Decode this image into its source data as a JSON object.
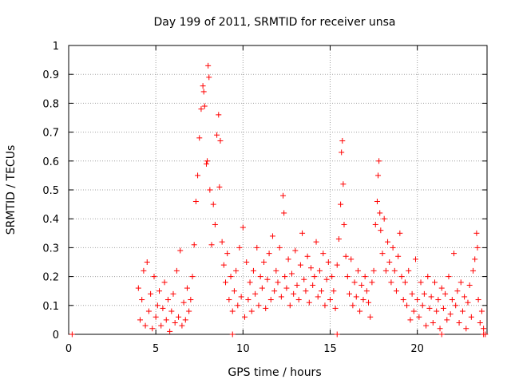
{
  "chart_data": {
    "type": "scatter",
    "title": "Day 199 of 2011, SRMTID for receiver unsa",
    "xlabel": "GPS time / hours",
    "ylabel": "SRMTID / TECUs",
    "xlim": [
      0,
      24
    ],
    "ylim": [
      0,
      1
    ],
    "x_ticks": [
      "0",
      "5",
      "10",
      "15",
      "20"
    ],
    "x_tick_values": [
      0,
      5,
      10,
      15,
      20
    ],
    "y_ticks": [
      "0",
      "0.1",
      "0.2",
      "0.3",
      "0.4",
      "0.5",
      "0.6",
      "0.7",
      "0.8",
      "0.9",
      "1"
    ],
    "y_tick_values": [
      0,
      0.1,
      0.2,
      0.3,
      0.4,
      0.5,
      0.6,
      0.7,
      0.8,
      0.9,
      1
    ],
    "grid": true,
    "marker": "+",
    "color": "#ff0000",
    "series": [
      {
        "points": [
          [
            0.2,
            0.0
          ],
          [
            9.4,
            0.0
          ],
          [
            15.4,
            0.0
          ],
          [
            21.4,
            0.0
          ],
          [
            23.8,
            0.0
          ],
          [
            4.0,
            0.16
          ],
          [
            4.1,
            0.05
          ],
          [
            4.2,
            0.12
          ],
          [
            4.3,
            0.22
          ],
          [
            4.4,
            0.03
          ],
          [
            4.5,
            0.25
          ],
          [
            4.6,
            0.08
          ],
          [
            4.7,
            0.14
          ],
          [
            4.8,
            0.02
          ],
          [
            4.9,
            0.2
          ],
          [
            5.0,
            0.06
          ],
          [
            5.1,
            0.1
          ],
          [
            5.2,
            0.15
          ],
          [
            5.3,
            0.03
          ],
          [
            5.4,
            0.09
          ],
          [
            5.5,
            0.18
          ],
          [
            5.6,
            0.05
          ],
          [
            5.7,
            0.12
          ],
          [
            5.8,
            0.01
          ],
          [
            5.9,
            0.08
          ],
          [
            6.0,
            0.14
          ],
          [
            6.1,
            0.04
          ],
          [
            6.2,
            0.22
          ],
          [
            6.3,
            0.06
          ],
          [
            6.4,
            0.29
          ],
          [
            6.5,
            0.03
          ],
          [
            6.6,
            0.11
          ],
          [
            6.7,
            0.05
          ],
          [
            6.8,
            0.16
          ],
          [
            6.9,
            0.08
          ],
          [
            7.0,
            0.12
          ],
          [
            7.1,
            0.2
          ],
          [
            7.2,
            0.31
          ],
          [
            7.3,
            0.46
          ],
          [
            7.4,
            0.55
          ],
          [
            7.5,
            0.68
          ],
          [
            7.6,
            0.78
          ],
          [
            7.7,
            0.86
          ],
          [
            7.75,
            0.84
          ],
          [
            7.8,
            0.79
          ],
          [
            7.9,
            0.59
          ],
          [
            7.95,
            0.6
          ],
          [
            8.0,
            0.93
          ],
          [
            8.05,
            0.89
          ],
          [
            8.1,
            0.5
          ],
          [
            8.2,
            0.31
          ],
          [
            8.3,
            0.45
          ],
          [
            8.4,
            0.38
          ],
          [
            8.5,
            0.69
          ],
          [
            8.6,
            0.76
          ],
          [
            8.65,
            0.51
          ],
          [
            8.7,
            0.67
          ],
          [
            8.8,
            0.32
          ],
          [
            8.9,
            0.24
          ],
          [
            9.0,
            0.18
          ],
          [
            9.1,
            0.28
          ],
          [
            9.2,
            0.12
          ],
          [
            9.3,
            0.2
          ],
          [
            9.4,
            0.08
          ],
          [
            9.5,
            0.15
          ],
          [
            9.6,
            0.22
          ],
          [
            9.7,
            0.1
          ],
          [
            9.8,
            0.3
          ],
          [
            9.9,
            0.13
          ],
          [
            10.0,
            0.37
          ],
          [
            10.1,
            0.06
          ],
          [
            10.2,
            0.25
          ],
          [
            10.3,
            0.12
          ],
          [
            10.4,
            0.18
          ],
          [
            10.5,
            0.08
          ],
          [
            10.6,
            0.22
          ],
          [
            10.7,
            0.14
          ],
          [
            10.8,
            0.3
          ],
          [
            10.9,
            0.1
          ],
          [
            11.0,
            0.2
          ],
          [
            11.1,
            0.16
          ],
          [
            11.2,
            0.25
          ],
          [
            11.3,
            0.09
          ],
          [
            11.4,
            0.19
          ],
          [
            11.5,
            0.28
          ],
          [
            11.6,
            0.12
          ],
          [
            11.7,
            0.34
          ],
          [
            11.8,
            0.15
          ],
          [
            11.9,
            0.22
          ],
          [
            12.0,
            0.18
          ],
          [
            12.1,
            0.3
          ],
          [
            12.2,
            0.13
          ],
          [
            12.3,
            0.48
          ],
          [
            12.35,
            0.42
          ],
          [
            12.4,
            0.2
          ],
          [
            12.5,
            0.16
          ],
          [
            12.6,
            0.26
          ],
          [
            12.7,
            0.1
          ],
          [
            12.8,
            0.21
          ],
          [
            12.9,
            0.14
          ],
          [
            13.0,
            0.29
          ],
          [
            13.1,
            0.17
          ],
          [
            13.2,
            0.12
          ],
          [
            13.3,
            0.24
          ],
          [
            13.4,
            0.35
          ],
          [
            13.5,
            0.19
          ],
          [
            13.6,
            0.15
          ],
          [
            13.7,
            0.27
          ],
          [
            13.8,
            0.11
          ],
          [
            13.9,
            0.23
          ],
          [
            14.0,
            0.17
          ],
          [
            14.1,
            0.2
          ],
          [
            14.2,
            0.32
          ],
          [
            14.3,
            0.13
          ],
          [
            14.4,
            0.22
          ],
          [
            14.5,
            0.15
          ],
          [
            14.6,
            0.28
          ],
          [
            14.7,
            0.1
          ],
          [
            14.8,
            0.19
          ],
          [
            14.9,
            0.25
          ],
          [
            15.0,
            0.12
          ],
          [
            15.1,
            0.2
          ],
          [
            15.2,
            0.15
          ],
          [
            15.3,
            0.09
          ],
          [
            15.4,
            0.24
          ],
          [
            15.5,
            0.33
          ],
          [
            15.6,
            0.45
          ],
          [
            15.65,
            0.63
          ],
          [
            15.7,
            0.67
          ],
          [
            15.75,
            0.52
          ],
          [
            15.8,
            0.38
          ],
          [
            15.9,
            0.27
          ],
          [
            16.0,
            0.2
          ],
          [
            16.1,
            0.14
          ],
          [
            16.2,
            0.26
          ],
          [
            16.3,
            0.1
          ],
          [
            16.4,
            0.18
          ],
          [
            16.5,
            0.13
          ],
          [
            16.6,
            0.22
          ],
          [
            16.7,
            0.08
          ],
          [
            16.8,
            0.17
          ],
          [
            16.9,
            0.12
          ],
          [
            17.0,
            0.2
          ],
          [
            17.1,
            0.15
          ],
          [
            17.2,
            0.11
          ],
          [
            17.3,
            0.06
          ],
          [
            17.4,
            0.18
          ],
          [
            17.5,
            0.22
          ],
          [
            17.6,
            0.38
          ],
          [
            17.7,
            0.46
          ],
          [
            17.75,
            0.55
          ],
          [
            17.8,
            0.6
          ],
          [
            17.85,
            0.42
          ],
          [
            17.9,
            0.36
          ],
          [
            18.0,
            0.28
          ],
          [
            18.1,
            0.4
          ],
          [
            18.2,
            0.22
          ],
          [
            18.3,
            0.32
          ],
          [
            18.4,
            0.25
          ],
          [
            18.5,
            0.18
          ],
          [
            18.6,
            0.3
          ],
          [
            18.7,
            0.22
          ],
          [
            18.8,
            0.15
          ],
          [
            18.9,
            0.27
          ],
          [
            19.0,
            0.35
          ],
          [
            19.1,
            0.2
          ],
          [
            19.2,
            0.12
          ],
          [
            19.3,
            0.18
          ],
          [
            19.4,
            0.1
          ],
          [
            19.5,
            0.22
          ],
          [
            19.6,
            0.05
          ],
          [
            19.7,
            0.14
          ],
          [
            19.8,
            0.08
          ],
          [
            19.9,
            0.26
          ],
          [
            20.0,
            0.12
          ],
          [
            20.1,
            0.06
          ],
          [
            20.2,
            0.18
          ],
          [
            20.3,
            0.1
          ],
          [
            20.4,
            0.14
          ],
          [
            20.5,
            0.03
          ],
          [
            20.6,
            0.2
          ],
          [
            20.7,
            0.09
          ],
          [
            20.8,
            0.13
          ],
          [
            20.9,
            0.04
          ],
          [
            21.0,
            0.18
          ],
          [
            21.1,
            0.08
          ],
          [
            21.2,
            0.12
          ],
          [
            21.3,
            0.02
          ],
          [
            21.4,
            0.16
          ],
          [
            21.5,
            0.09
          ],
          [
            21.6,
            0.14
          ],
          [
            21.7,
            0.05
          ],
          [
            21.8,
            0.2
          ],
          [
            21.9,
            0.07
          ],
          [
            22.0,
            0.12
          ],
          [
            22.1,
            0.28
          ],
          [
            22.2,
            0.1
          ],
          [
            22.3,
            0.15
          ],
          [
            22.4,
            0.04
          ],
          [
            22.5,
            0.18
          ],
          [
            22.6,
            0.08
          ],
          [
            22.7,
            0.13
          ],
          [
            22.8,
            0.02
          ],
          [
            22.9,
            0.11
          ],
          [
            23.0,
            0.17
          ],
          [
            23.1,
            0.06
          ],
          [
            23.2,
            0.22
          ],
          [
            23.3,
            0.26
          ],
          [
            23.4,
            0.35
          ],
          [
            23.45,
            0.3
          ],
          [
            23.5,
            0.12
          ],
          [
            23.6,
            0.04
          ],
          [
            23.7,
            0.08
          ],
          [
            23.8,
            0.02
          ],
          [
            23.9,
            0.0
          ]
        ]
      }
    ]
  }
}
